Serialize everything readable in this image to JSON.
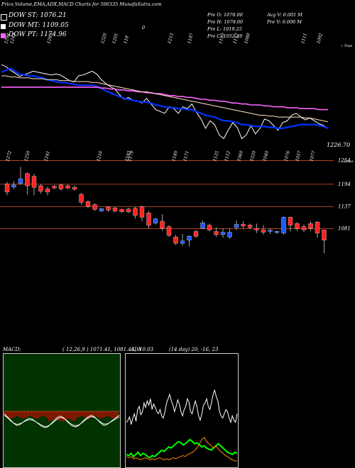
{
  "header": {
    "title": "Price,Volume,EMA,ADX,MACD Charts for 500335 MunafaSutra.com",
    "legend": [
      {
        "label": "DOW ST: 1076.21",
        "color": "#000000"
      },
      {
        "label": "DOW MT: 1109.05",
        "color": "#ffffff"
      },
      {
        "label": "DOW PT: 1174.96",
        "color": "#ff66ff"
      }
    ],
    "ohlc": {
      "open": "Pre   O: 1078.00",
      "high": "Pre   H: 1078.00",
      "low": "Pre   L: 1019.25",
      "close": "Pre   C: 1052.40",
      "avg_vol": "Avg V: 0.001 M",
      "pre_vol": "Pre   V: 0.006  M",
      "mark": "0"
    }
  },
  "ema_panel": {
    "top_labels": [
      "1294",
      "1243",
      "1265",
      "1220",
      "1201",
      "118",
      "1213",
      "1187",
      "1180",
      "1117",
      "1088",
      "1111",
      "1092"
    ],
    "right_tag": "« Tops",
    "last_value": "1226.70"
  },
  "price_panel": {
    "top_labels": [
      "1272",
      "1250",
      "1241",
      "1216",
      "1193",
      "1179",
      "1180",
      "1171",
      "1125",
      "1112",
      "1060",
      "1020",
      "1040",
      "1076",
      "1057",
      "1077"
    ],
    "right_tag": "« Lows",
    "price_levels": [
      "1254",
      "1194",
      "1137",
      "1081"
    ]
  },
  "macd_panel": {
    "title": "MACD: ",
    "values": "( 12,26,9 ) 1071.41, 1081.44, -10.03",
    "hist_color": "#ff0000",
    "bg_color": "#003300"
  },
  "adx_panel": {
    "title": "ADX",
    "values": "(14 day) 20, -16, 23",
    "di_plus_color": "#00ff00",
    "di_minus_color": "#ff8800"
  },
  "chart_data": [
    {
      "type": "candlestick",
      "title": "Price",
      "y_levels": [
        1254,
        1194,
        1137,
        1081
      ],
      "candles": [
        {
          "o": 1194,
          "c": 1174,
          "h": 1200,
          "l": 1166,
          "color": "red"
        },
        {
          "o": 1187,
          "c": 1192,
          "h": 1202,
          "l": 1182,
          "color": "blue"
        },
        {
          "o": 1196,
          "c": 1208,
          "h": 1238,
          "l": 1192,
          "color": "blue"
        },
        {
          "o": 1221,
          "c": 1190,
          "h": 1224,
          "l": 1168,
          "color": "red"
        },
        {
          "o": 1214,
          "c": 1186,
          "h": 1221,
          "l": 1166,
          "color": "red"
        },
        {
          "o": 1190,
          "c": 1176,
          "h": 1194,
          "l": 1170,
          "color": "red"
        },
        {
          "o": 1182,
          "c": 1174,
          "h": 1188,
          "l": 1166,
          "color": "red"
        },
        {
          "o": 1189,
          "c": 1184,
          "h": 1192,
          "l": 1182,
          "color": "red"
        },
        {
          "o": 1192,
          "c": 1182,
          "h": 1194,
          "l": 1178,
          "color": "red"
        },
        {
          "o": 1190,
          "c": 1184,
          "h": 1193,
          "l": 1182,
          "color": "red"
        },
        {
          "o": 1186,
          "c": 1181,
          "h": 1191,
          "l": 1178,
          "color": "red"
        },
        {
          "o": 1168,
          "c": 1148,
          "h": 1172,
          "l": 1142,
          "color": "red"
        },
        {
          "o": 1150,
          "c": 1138,
          "h": 1153,
          "l": 1134,
          "color": "red"
        },
        {
          "o": 1142,
          "c": 1130,
          "h": 1145,
          "l": 1126,
          "color": "red"
        },
        {
          "o": 1132,
          "c": 1126,
          "h": 1134,
          "l": 1124,
          "color": "blue"
        },
        {
          "o": 1136,
          "c": 1128,
          "h": 1138,
          "l": 1124,
          "color": "red"
        },
        {
          "o": 1134,
          "c": 1126,
          "h": 1136,
          "l": 1122,
          "color": "red"
        },
        {
          "o": 1130,
          "c": 1124,
          "h": 1132,
          "l": 1122,
          "color": "red"
        },
        {
          "o": 1131,
          "c": 1124,
          "h": 1134,
          "l": 1121,
          "color": "red"
        },
        {
          "o": 1133,
          "c": 1115,
          "h": 1136,
          "l": 1107,
          "color": "red"
        },
        {
          "o": 1137,
          "c": 1110,
          "h": 1140,
          "l": 1100,
          "color": "red"
        },
        {
          "o": 1121,
          "c": 1090,
          "h": 1126,
          "l": 1082,
          "color": "red"
        },
        {
          "o": 1106,
          "c": 1095,
          "h": 1108,
          "l": 1092,
          "color": "blue"
        },
        {
          "o": 1100,
          "c": 1082,
          "h": 1118,
          "l": 1076,
          "color": "red"
        },
        {
          "o": 1086,
          "c": 1064,
          "h": 1090,
          "l": 1060,
          "color": "red"
        },
        {
          "o": 1060,
          "c": 1044,
          "h": 1066,
          "l": 1040,
          "color": "red"
        },
        {
          "o": 1044,
          "c": 1050,
          "h": 1068,
          "l": 1038,
          "color": "blue"
        },
        {
          "o": 1052,
          "c": 1062,
          "h": 1064,
          "l": 1036,
          "color": "blue"
        },
        {
          "o": 1062,
          "c": 1074,
          "h": 1078,
          "l": 1058,
          "color": "red"
        },
        {
          "o": 1082,
          "c": 1096,
          "h": 1102,
          "l": 1080,
          "color": "blue"
        },
        {
          "o": 1078,
          "c": 1090,
          "h": 1094,
          "l": 1074,
          "color": "red"
        },
        {
          "o": 1074,
          "c": 1066,
          "h": 1084,
          "l": 1060,
          "color": "red"
        },
        {
          "o": 1066,
          "c": 1072,
          "h": 1082,
          "l": 1058,
          "color": "blue"
        },
        {
          "o": 1060,
          "c": 1072,
          "h": 1080,
          "l": 1056,
          "color": "blue"
        },
        {
          "o": 1084,
          "c": 1092,
          "h": 1102,
          "l": 1078,
          "color": "blue"
        },
        {
          "o": 1092,
          "c": 1088,
          "h": 1100,
          "l": 1082,
          "color": "red"
        },
        {
          "o": 1090,
          "c": 1084,
          "h": 1094,
          "l": 1080,
          "color": "red"
        },
        {
          "o": 1082,
          "c": 1078,
          "h": 1094,
          "l": 1070,
          "color": "red"
        },
        {
          "o": 1078,
          "c": 1072,
          "h": 1090,
          "l": 1066,
          "color": "red"
        },
        {
          "o": 1074,
          "c": 1077,
          "h": 1082,
          "l": 1068,
          "color": "blue"
        },
        {
          "o": 1072,
          "c": 1074,
          "h": 1076,
          "l": 1068,
          "color": "blue"
        },
        {
          "o": 1070,
          "c": 1110,
          "h": 1112,
          "l": 1066,
          "color": "blue"
        },
        {
          "o": 1110,
          "c": 1090,
          "h": 1112,
          "l": 1074,
          "color": "red"
        },
        {
          "o": 1094,
          "c": 1082,
          "h": 1098,
          "l": 1076,
          "color": "red"
        },
        {
          "o": 1086,
          "c": 1078,
          "h": 1092,
          "l": 1072,
          "color": "red"
        },
        {
          "o": 1094,
          "c": 1082,
          "h": 1100,
          "l": 1076,
          "color": "red"
        },
        {
          "o": 1098,
          "c": 1070,
          "h": 1100,
          "l": 1058,
          "color": "red"
        },
        {
          "o": 1078,
          "c": 1052,
          "h": 1078,
          "l": 1019,
          "color": "red"
        }
      ]
    },
    {
      "type": "line",
      "title": "EMA",
      "series": [
        {
          "color": "#ffffff",
          "values": [
            1280,
            1276,
            1268,
            1262,
            1255,
            1258,
            1262,
            1266,
            1264,
            1262,
            1260,
            1258,
            1260,
            1258,
            1252,
            1246,
            1243,
            1256,
            1258,
            1262,
            1266,
            1260,
            1248,
            1240,
            1233,
            1228,
            1216,
            1206,
            1210,
            1204,
            1202,
            1198,
            1208,
            1196,
            1184,
            1180,
            1176,
            1190,
            1186,
            1176,
            1190,
            1186,
            1196,
            1178,
            1164,
            1144,
            1160,
            1152,
            1130,
            1122,
            1140,
            1156,
            1146,
            1122,
            1130,
            1150,
            1132,
            1144,
            1164,
            1160,
            1150,
            1140,
            1156,
            1160,
            1172,
            1176,
            1168,
            1162,
            1166,
            1160,
            1154,
            1150,
            1144
          ]
        },
        {
          "color": "#0033ff",
          "values": [
            1264,
            1268,
            1272,
            1266,
            1260,
            1258,
            1256,
            1256,
            1254,
            1252,
            1248,
            1246,
            1244,
            1242,
            1242,
            1240,
            1238,
            1236,
            1236,
            1236,
            1236,
            1234,
            1230,
            1224,
            1220,
            1216,
            1212,
            1208,
            1206,
            1204,
            1202,
            1200,
            1200,
            1198,
            1194,
            1192,
            1190,
            1188,
            1188,
            1186,
            1186,
            1184,
            1184,
            1180,
            1176,
            1172,
            1170,
            1168,
            1164,
            1160,
            1160,
            1158,
            1156,
            1152,
            1152,
            1150,
            1148,
            1148,
            1148,
            1146,
            1146,
            1144,
            1144,
            1146,
            1148,
            1150,
            1152,
            1152,
            1152,
            1152,
            1150,
            1148,
            1144
          ]
        },
        {
          "color": "#ff66ff",
          "values": [
            1232,
            1232,
            1232,
            1232,
            1232,
            1232,
            1232,
            1232,
            1232,
            1232,
            1232,
            1232,
            1232,
            1232,
            1232,
            1232,
            1232,
            1232,
            1232,
            1232,
            1232,
            1232,
            1230,
            1230,
            1228,
            1228,
            1226,
            1226,
            1224,
            1224,
            1222,
            1222,
            1220,
            1220,
            1218,
            1218,
            1216,
            1214,
            1214,
            1212,
            1212,
            1210,
            1210,
            1208,
            1206,
            1206,
            1204,
            1204,
            1202,
            1202,
            1200,
            1198,
            1198,
            1196,
            1196,
            1194,
            1194,
            1194,
            1192,
            1192,
            1190,
            1190,
            1190,
            1188,
            1188,
            1188,
            1186,
            1186,
            1186,
            1186,
            1184,
            1184,
            1184
          ]
        },
        {
          "color": "#ffe4c4",
          "values": [
            1256,
            1256,
            1254,
            1254,
            1252,
            1252,
            1252,
            1250,
            1250,
            1250,
            1248,
            1248,
            1248,
            1246,
            1246,
            1246,
            1244,
            1244,
            1244,
            1244,
            1242,
            1242,
            1240,
            1238,
            1236,
            1234,
            1232,
            1230,
            1228,
            1226,
            1224,
            1222,
            1222,
            1220,
            1218,
            1216,
            1214,
            1212,
            1210,
            1208,
            1206,
            1204,
            1202,
            1200,
            1198,
            1196,
            1194,
            1192,
            1190,
            1188,
            1186,
            1184,
            1182,
            1180,
            1178,
            1176,
            1174,
            1172,
            1172,
            1170,
            1170,
            1168,
            1168,
            1168,
            1168,
            1168,
            1168,
            1166,
            1166,
            1164,
            1162,
            1160,
            1158
          ]
        }
      ]
    },
    {
      "type": "line",
      "title": "MACD",
      "series": [
        {
          "color": "#ffffff",
          "values": [
            0.3,
            0.1,
            -0.1,
            -0.3,
            -0.45,
            -0.4,
            -0.25,
            -0.1,
            0.0,
            -0.05,
            -0.2,
            -0.35,
            -0.5,
            -0.6,
            -0.55,
            -0.35,
            -0.15,
            0.05,
            0.15,
            0.05,
            -0.15,
            -0.35,
            -0.5,
            -0.55,
            -0.45,
            -0.25,
            -0.05,
            0.1,
            0.2,
            0.1,
            -0.1,
            -0.3,
            -0.45,
            -0.4,
            -0.25,
            -0.1,
            0.05,
            0.2
          ]
        },
        {
          "color": "#ffffff",
          "values": [
            0.2,
            0.05,
            -0.15,
            -0.3,
            -0.38,
            -0.35,
            -0.25,
            -0.15,
            -0.08,
            -0.1,
            -0.2,
            -0.32,
            -0.44,
            -0.52,
            -0.5,
            -0.38,
            -0.22,
            -0.06,
            0.06,
            0.02,
            -0.12,
            -0.28,
            -0.42,
            -0.48,
            -0.42,
            -0.28,
            -0.12,
            0.02,
            0.12,
            0.06,
            -0.08,
            -0.24,
            -0.36,
            -0.36,
            -0.26,
            -0.14,
            -0.02,
            0.1
          ]
        }
      ]
    },
    {
      "type": "line",
      "title": "ADX",
      "series": [
        {
          "color": "#ffffff",
          "values": [
            0.4,
            0.42,
            0.45,
            0.38,
            0.44,
            0.48,
            0.41,
            0.52,
            0.55,
            0.47,
            0.5,
            0.58,
            0.54,
            0.6,
            0.56,
            0.62,
            0.52,
            0.57,
            0.54,
            0.5,
            0.48,
            0.52,
            0.46,
            0.44,
            0.5,
            0.58,
            0.62,
            0.66,
            0.6,
            0.56,
            0.5,
            0.55,
            0.61,
            0.57,
            0.5,
            0.46,
            0.52,
            0.55,
            0.62,
            0.59,
            0.5,
            0.48,
            0.55,
            0.6,
            0.54,
            0.46,
            0.42,
            0.48,
            0.56,
            0.58,
            0.62,
            0.55,
            0.52,
            0.58,
            0.66,
            0.7,
            0.64,
            0.6,
            0.5,
            0.46,
            0.44,
            0.48,
            0.52,
            0.5,
            0.44,
            0.4,
            0.46,
            0.42,
            0.4,
            0.48
          ]
        },
        {
          "color": "#00ff00",
          "values": [
            0.1,
            0.09,
            0.11,
            0.08,
            0.1,
            0.12,
            0.09,
            0.11,
            0.1,
            0.08,
            0.07,
            0.09,
            0.08,
            0.1,
            0.12,
            0.14,
            0.13,
            0.15,
            0.17,
            0.16,
            0.18,
            0.2,
            0.22,
            0.21,
            0.19,
            0.2,
            0.22,
            0.24,
            0.22,
            0.2,
            0.21,
            0.19,
            0.17,
            0.18,
            0.16,
            0.15,
            0.14,
            0.16,
            0.18,
            0.2,
            0.18,
            0.16,
            0.14,
            0.12,
            0.11,
            0.1,
            0.12,
            0.11
          ]
        },
        {
          "color": "#ff8800",
          "values": [
            0.08,
            0.07,
            0.08,
            0.06,
            0.07,
            0.06,
            0.05,
            0.06,
            0.07,
            0.06,
            0.05,
            0.06,
            0.05,
            0.06,
            0.07,
            0.06,
            0.05,
            0.06,
            0.05,
            0.06,
            0.07,
            0.06,
            0.07,
            0.08,
            0.09,
            0.08,
            0.1,
            0.11,
            0.12,
            0.14,
            0.16,
            0.2,
            0.24,
            0.26,
            0.22,
            0.2,
            0.18,
            0.16,
            0.18,
            0.15,
            0.13,
            0.11,
            0.09,
            0.08,
            0.06,
            0.05,
            0.04,
            0.04
          ]
        }
      ]
    }
  ]
}
